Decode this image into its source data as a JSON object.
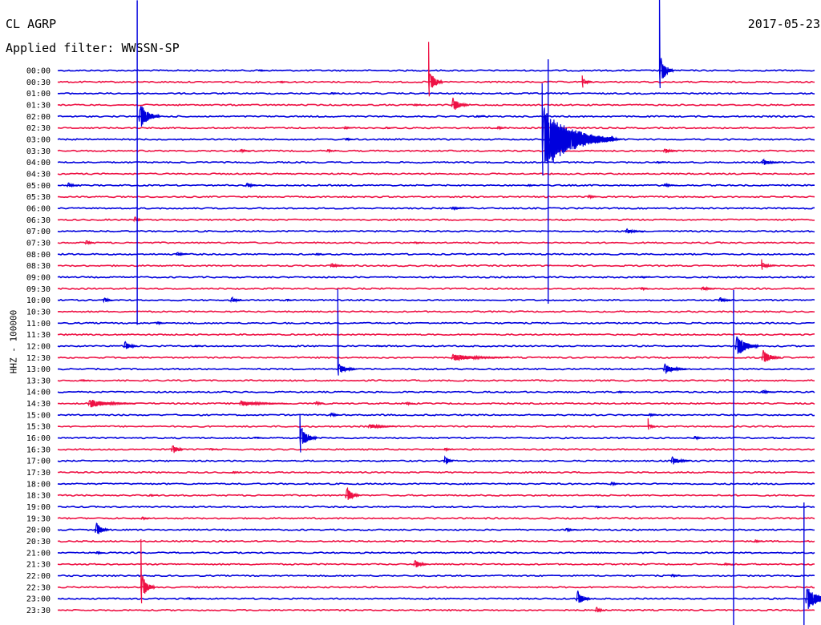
{
  "header": {
    "station": "CL AGRP",
    "date": "2017-05-23",
    "filter": "Applied filter: WWSSN-SP"
  },
  "colors": {
    "even": "#0000dd",
    "odd": "#ee1144",
    "text": "#000000",
    "background": "#ffffff"
  },
  "chart_data": {
    "type": "line",
    "title": "",
    "ylabel": "HHZ - 100000",
    "xlabel": "",
    "grid": false,
    "legend": "none",
    "y_ticks": [
      "00:00",
      "00:30",
      "01:00",
      "01:30",
      "02:00",
      "02:30",
      "03:00",
      "03:30",
      "04:00",
      "04:30",
      "05:00",
      "05:30",
      "06:00",
      "06:30",
      "07:00",
      "07:30",
      "08:00",
      "08:30",
      "09:00",
      "09:30",
      "10:00",
      "10:30",
      "11:00",
      "11:30",
      "12:00",
      "12:30",
      "13:00",
      "13:30",
      "14:00",
      "14:30",
      "15:00",
      "15:30",
      "16:00",
      "16:30",
      "17:00",
      "17:30",
      "18:00",
      "18:30",
      "19:00",
      "19:30",
      "20:00",
      "20:30",
      "21:00",
      "21:30",
      "22:00",
      "22:30",
      "23:00",
      "23:30"
    ],
    "x_minutes": [
      0,
      30
    ],
    "events": [
      {
        "row": 0,
        "t": 0.795,
        "amp": 22,
        "dec": 0.3,
        "up": 110
      },
      {
        "row": 0,
        "t": 0.265,
        "amp": 2,
        "dec": 0.15,
        "up": 0
      },
      {
        "row": 1,
        "t": 0.49,
        "amp": 18,
        "dec": 0.3,
        "up": 50
      },
      {
        "row": 1,
        "t": 0.693,
        "amp": 7,
        "dec": 0.2,
        "up": 8
      },
      {
        "row": 1,
        "t": 0.293,
        "amp": 2,
        "dec": 0.15,
        "up": 0
      },
      {
        "row": 2,
        "t": 0.36,
        "amp": 2,
        "dec": 0.2,
        "up": 0
      },
      {
        "row": 3,
        "t": 0.52,
        "amp": 12,
        "dec": 0.35,
        "up": 0
      },
      {
        "row": 3,
        "t": 0.47,
        "amp": 2,
        "dec": 0.15,
        "up": 0
      },
      {
        "row": 4,
        "t": 0.552,
        "amp": 2,
        "dec": 0.15,
        "up": 0
      },
      {
        "row": 5,
        "t": 0.378,
        "amp": 3,
        "dec": 0.2,
        "up": 0
      },
      {
        "row": 5,
        "t": 0.432,
        "amp": 2,
        "dec": 0.2,
        "up": 0
      },
      {
        "row": 5,
        "t": 0.58,
        "amp": 3,
        "dec": 0.2,
        "up": 0
      },
      {
        "row": 6,
        "t": 0.64,
        "amp": 45,
        "dec": 1.5,
        "up": 70
      },
      {
        "row": 6,
        "t": 0.38,
        "amp": 3,
        "dec": 0.2,
        "up": 0
      },
      {
        "row": 6,
        "t": 0.73,
        "amp": 6,
        "dec": 0.25,
        "up": 0
      },
      {
        "row": 7,
        "t": 0.24,
        "amp": 3,
        "dec": 0.25,
        "up": 0
      },
      {
        "row": 7,
        "t": 0.355,
        "amp": 3,
        "dec": 0.2,
        "up": 0
      },
      {
        "row": 7,
        "t": 0.8,
        "amp": 5,
        "dec": 0.3,
        "up": 0
      },
      {
        "row": 8,
        "t": 0.79,
        "amp": 2,
        "dec": 0.15,
        "up": 0
      },
      {
        "row": 8,
        "t": 0.93,
        "amp": 5,
        "dec": 0.4,
        "up": 0
      },
      {
        "row": 10,
        "t": 0.012,
        "amp": 5,
        "dec": 0.25,
        "up": 0
      },
      {
        "row": 10,
        "t": 0.248,
        "amp": 5,
        "dec": 0.25,
        "up": 0
      },
      {
        "row": 10,
        "t": 0.62,
        "amp": 2,
        "dec": 0.15,
        "up": 0
      },
      {
        "row": 10,
        "t": 0.8,
        "amp": 3,
        "dec": 0.3,
        "up": 0
      },
      {
        "row": 11,
        "t": 0.7,
        "amp": 4,
        "dec": 0.2,
        "up": 0
      },
      {
        "row": 12,
        "t": 0.52,
        "amp": 3,
        "dec": 0.3,
        "up": 0
      },
      {
        "row": 13,
        "t": 0.1,
        "amp": 6,
        "dec": 0.2,
        "up": 0
      },
      {
        "row": 14,
        "t": 0.75,
        "amp": 4,
        "dec": 0.4,
        "up": 0
      },
      {
        "row": 15,
        "t": 0.036,
        "amp": 5,
        "dec": 0.2,
        "up": 0
      },
      {
        "row": 15,
        "t": 0.47,
        "amp": 2,
        "dec": 0.15,
        "up": 0
      },
      {
        "row": 16,
        "t": 0.156,
        "amp": 4,
        "dec": 0.25,
        "up": 0
      },
      {
        "row": 16,
        "t": 0.34,
        "amp": 2,
        "dec": 0.15,
        "up": 0
      },
      {
        "row": 17,
        "t": 0.36,
        "amp": 4,
        "dec": 0.3,
        "up": 0
      },
      {
        "row": 17,
        "t": 0.93,
        "amp": 5,
        "dec": 0.3,
        "up": 8
      },
      {
        "row": 18,
        "t": 0.77,
        "amp": 2,
        "dec": 0.2,
        "up": 0
      },
      {
        "row": 19,
        "t": 0.85,
        "amp": 4,
        "dec": 0.3,
        "up": 0
      },
      {
        "row": 19,
        "t": 0.77,
        "amp": 3,
        "dec": 0.2,
        "up": 0
      },
      {
        "row": 20,
        "t": 0.06,
        "amp": 6,
        "dec": 0.2,
        "up": 0
      },
      {
        "row": 20,
        "t": 0.228,
        "amp": 6,
        "dec": 0.25,
        "up": 0
      },
      {
        "row": 20,
        "t": 0.873,
        "amp": 5,
        "dec": 0.3,
        "up": 0
      },
      {
        "row": 20,
        "t": 0.3,
        "amp": 2,
        "dec": 0.2,
        "up": 0
      },
      {
        "row": 22,
        "t": 0.13,
        "amp": 3,
        "dec": 0.2,
        "up": 0
      },
      {
        "row": 24,
        "t": 0.087,
        "amp": 8,
        "dec": 0.3,
        "up": 0
      },
      {
        "row": 24,
        "t": 0.18,
        "amp": 2,
        "dec": 0.2,
        "up": 0
      },
      {
        "row": 24,
        "t": 0.42,
        "amp": 2,
        "dec": 0.2,
        "up": 0
      },
      {
        "row": 25,
        "t": 0.52,
        "amp": 5,
        "dec": 1.2,
        "up": 0
      },
      {
        "row": 25,
        "t": 0.93,
        "amp": 12,
        "dec": 0.4,
        "up": 0
      },
      {
        "row": 26,
        "t": 0.37,
        "amp": 8,
        "dec": 0.4,
        "up": 100
      },
      {
        "row": 26,
        "t": 0.8,
        "amp": 8,
        "dec": 0.5,
        "up": 0
      },
      {
        "row": 27,
        "t": 0.03,
        "amp": 2,
        "dec": 0.2,
        "up": 0
      },
      {
        "row": 28,
        "t": 0.74,
        "amp": 2,
        "dec": 0.2,
        "up": 0
      },
      {
        "row": 28,
        "t": 0.93,
        "amp": 3,
        "dec": 0.3,
        "up": 0
      },
      {
        "row": 29,
        "t": 0.04,
        "amp": 6,
        "dec": 1.0,
        "up": 0
      },
      {
        "row": 29,
        "t": 0.24,
        "amp": 4,
        "dec": 1.0,
        "up": 0
      },
      {
        "row": 29,
        "t": 0.34,
        "amp": 4,
        "dec": 0.2,
        "up": 0
      },
      {
        "row": 29,
        "t": 0.46,
        "amp": 3,
        "dec": 0.2,
        "up": 0
      },
      {
        "row": 30,
        "t": 0.36,
        "amp": 5,
        "dec": 0.2,
        "up": 0
      },
      {
        "row": 30,
        "t": 0.78,
        "amp": 3,
        "dec": 0.2,
        "up": 0
      },
      {
        "row": 31,
        "t": 0.41,
        "amp": 4,
        "dec": 0.6,
        "up": 0
      },
      {
        "row": 31,
        "t": 0.78,
        "amp": 4,
        "dec": 0.2,
        "up": 10
      },
      {
        "row": 32,
        "t": 0.32,
        "amp": 18,
        "dec": 0.35,
        "up": 30
      },
      {
        "row": 32,
        "t": 0.26,
        "amp": 2,
        "dec": 0.15,
        "up": 0
      },
      {
        "row": 32,
        "t": 0.84,
        "amp": 4,
        "dec": 0.2,
        "up": 0
      },
      {
        "row": 33,
        "t": 0.15,
        "amp": 10,
        "dec": 0.25,
        "up": 0
      },
      {
        "row": 33,
        "t": 0.2,
        "amp": 2,
        "dec": 0.15,
        "up": 0
      },
      {
        "row": 33,
        "t": 0.51,
        "amp": 3,
        "dec": 0.2,
        "up": 0
      },
      {
        "row": 34,
        "t": 0.51,
        "amp": 10,
        "dec": 0.2,
        "up": 0
      },
      {
        "row": 34,
        "t": 0.81,
        "amp": 7,
        "dec": 0.4,
        "up": 0
      },
      {
        "row": 35,
        "t": 0.23,
        "amp": 2,
        "dec": 0.15,
        "up": 0
      },
      {
        "row": 36,
        "t": 0.73,
        "amp": 4,
        "dec": 0.2,
        "up": 0
      },
      {
        "row": 37,
        "t": 0.38,
        "amp": 14,
        "dec": 0.3,
        "up": 0
      },
      {
        "row": 37,
        "t": 0.12,
        "amp": 2,
        "dec": 0.2,
        "up": 0
      },
      {
        "row": 38,
        "t": 0.71,
        "amp": 2,
        "dec": 0.2,
        "up": 0
      },
      {
        "row": 39,
        "t": 0.11,
        "amp": 3,
        "dec": 0.2,
        "up": 0
      },
      {
        "row": 40,
        "t": 0.049,
        "amp": 12,
        "dec": 0.3,
        "up": 0
      },
      {
        "row": 40,
        "t": 0.67,
        "amp": 3,
        "dec": 0.3,
        "up": 0
      },
      {
        "row": 41,
        "t": 0.92,
        "amp": 3,
        "dec": 0.2,
        "up": 0
      },
      {
        "row": 42,
        "t": 0.05,
        "amp": 3,
        "dec": 0.2,
        "up": 0
      },
      {
        "row": 43,
        "t": 0.47,
        "amp": 8,
        "dec": 0.3,
        "up": 0
      },
      {
        "row": 43,
        "t": 0.88,
        "amp": 3,
        "dec": 0.2,
        "up": 0
      },
      {
        "row": 44,
        "t": 0.81,
        "amp": 3,
        "dec": 0.2,
        "up": 0
      },
      {
        "row": 45,
        "t": 0.11,
        "amp": 20,
        "dec": 0.3,
        "up": 60
      },
      {
        "row": 46,
        "t": 0.685,
        "amp": 14,
        "dec": 0.3,
        "up": 0
      },
      {
        "row": 46,
        "t": 0.17,
        "amp": 2,
        "dec": 0.15,
        "up": 0
      },
      {
        "row": 47,
        "t": 0.71,
        "amp": 6,
        "dec": 0.2,
        "up": 0
      }
    ],
    "spikes": [
      {
        "row": 4,
        "t": 0.105,
        "h1": 145,
        "h2": 260,
        "amp": 20,
        "dec": 0.45
      },
      {
        "row": 6,
        "t": 0.648,
        "h1": 100,
        "h2": 205,
        "amp": 10,
        "dec": 0.3
      },
      {
        "row": 24,
        "t": 0.893,
        "h1": 70,
        "h2": 420,
        "amp": 18,
        "dec": 0.5
      },
      {
        "row": 46,
        "t": 0.986,
        "h1": 120,
        "h2": 36,
        "amp": 18,
        "dec": 0.6
      }
    ]
  }
}
